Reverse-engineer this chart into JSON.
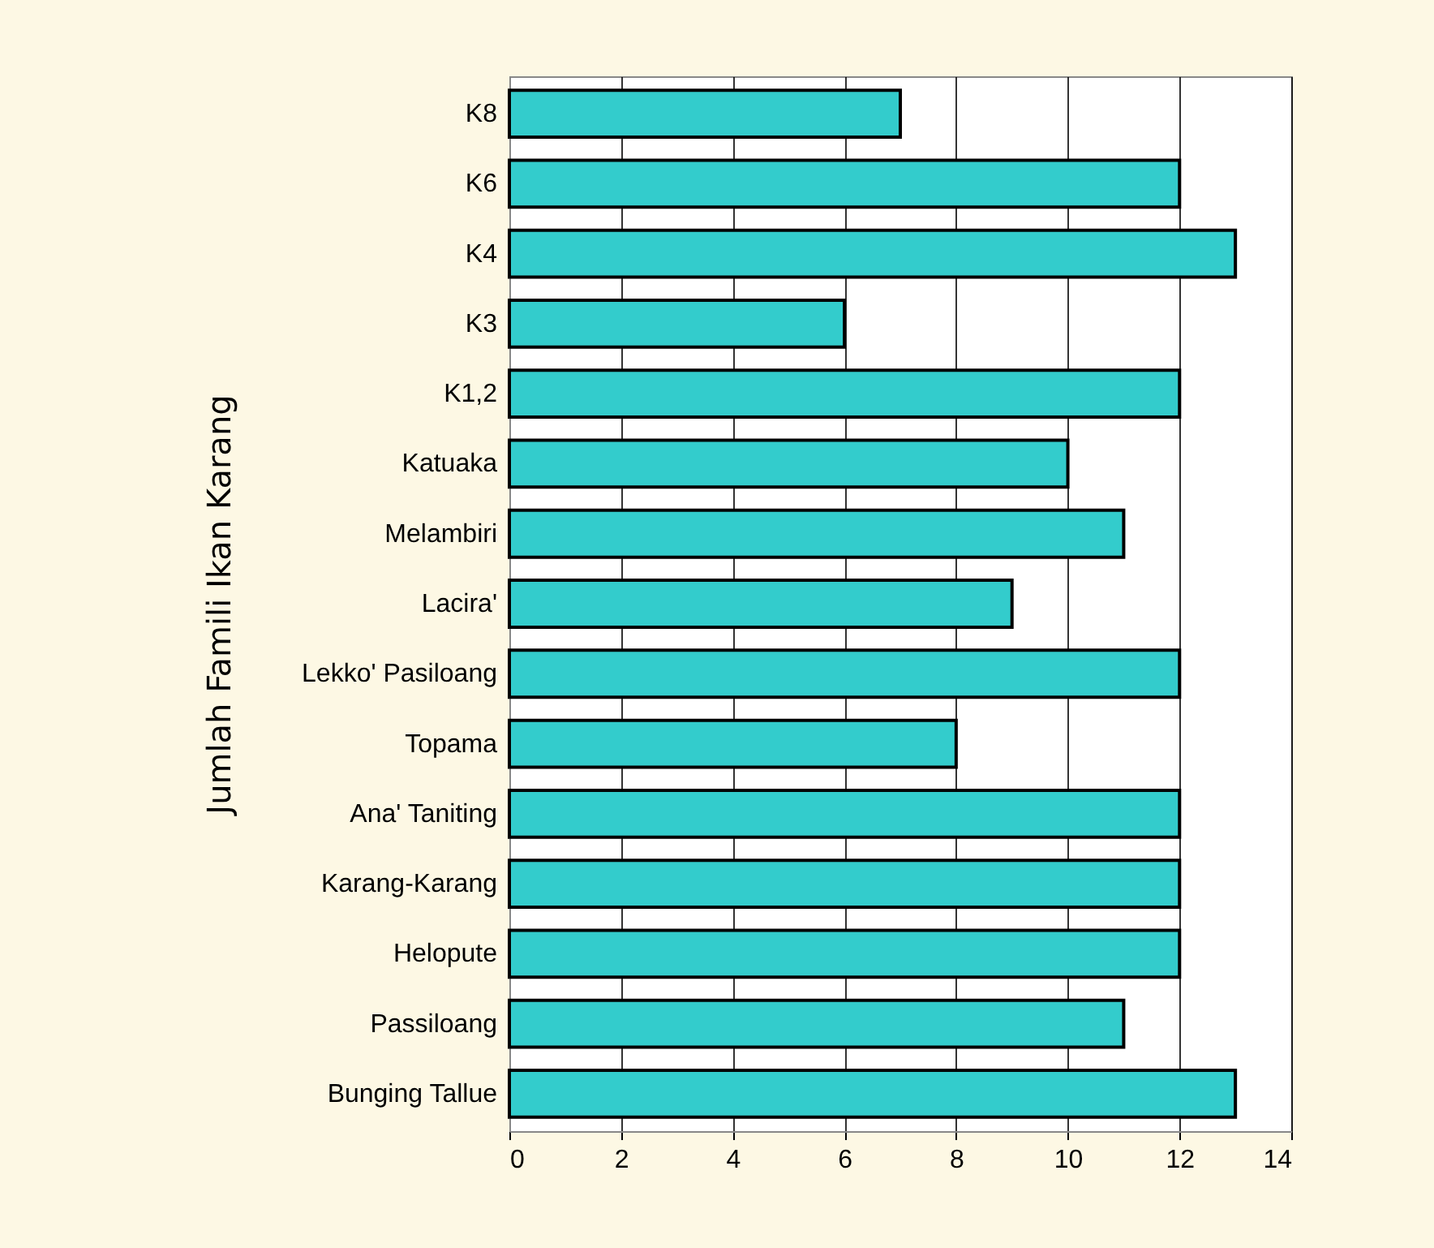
{
  "chart_data": {
    "type": "bar",
    "orientation": "horizontal",
    "ylabel": "Jumlah Famili Ikan Karang",
    "categories": [
      "K8",
      "K6",
      "K4",
      "K3",
      "K1,2",
      "Katuaka",
      "Melambiri",
      "Lacira'",
      "Lekko' Pasiloang",
      "Topama",
      "Ana' Taniting",
      "Karang-Karang",
      "Helopute",
      "Passiloang",
      "Bunging Tallue"
    ],
    "values": [
      7,
      12,
      13,
      6,
      12,
      10,
      11,
      9,
      12,
      8,
      12,
      12,
      12,
      11,
      13
    ],
    "color": "#33cccc",
    "xlim": [
      0,
      14
    ],
    "xticks": [
      0,
      2,
      4,
      6,
      8,
      10,
      12,
      14
    ],
    "grid": "x"
  }
}
